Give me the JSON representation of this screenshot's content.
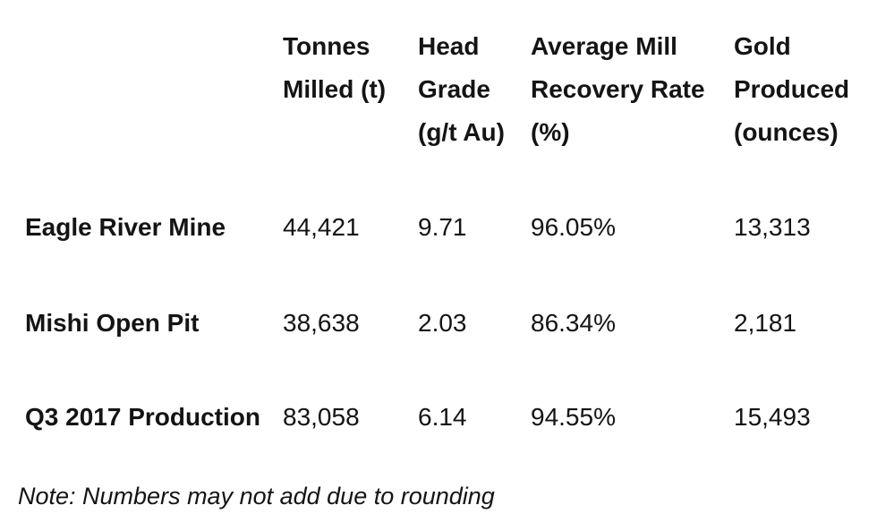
{
  "table": {
    "columns": [
      {
        "id": "entity",
        "label": "",
        "lines": []
      },
      {
        "id": "tonnes_milled",
        "label": "Tonnes Milled (t)",
        "lines": [
          "Tonnes",
          "Milled (t)"
        ]
      },
      {
        "id": "head_grade",
        "label": "Head Grade (g/t Au)",
        "lines": [
          "Head",
          "Grade",
          "(g/t Au)"
        ]
      },
      {
        "id": "recovery_rate",
        "label": "Average Mill Recovery Rate (%)",
        "lines": [
          "Average Mill",
          "Recovery Rate",
          "(%)"
        ]
      },
      {
        "id": "gold_produced",
        "label": "Gold Produced (ounces)",
        "lines": [
          "Gold",
          "Produced",
          "(ounces)"
        ]
      }
    ],
    "rows": [
      {
        "name": "Eagle River Mine",
        "tonnes_milled": "44,421",
        "head_grade": "9.71",
        "recovery_rate": "96.05%",
        "gold_produced": "13,313"
      },
      {
        "name": "Mishi Open Pit",
        "tonnes_milled": "38,638",
        "head_grade": "2.03",
        "recovery_rate": "86.34%",
        "gold_produced": "2,181"
      },
      {
        "name": "Q3 2017 Production",
        "tonnes_milled": "83,058",
        "head_grade": "6.14",
        "recovery_rate": "94.55%",
        "gold_produced": "15,493"
      }
    ]
  },
  "note": "Note: Numbers may not add due to rounding",
  "colors": {
    "text": "#141414",
    "background": "#ffffff"
  }
}
